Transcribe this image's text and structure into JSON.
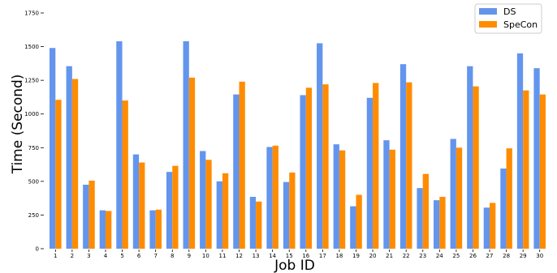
{
  "chart_data": {
    "type": "bar",
    "xlabel": "Job ID",
    "ylabel": "Time (Second)",
    "ylim": [
      0,
      1750
    ],
    "yticks": [
      0,
      250,
      500,
      750,
      1000,
      1250,
      1500,
      1750
    ],
    "ytick_labels": [
      "0",
      "250",
      "500",
      "750",
      "1000",
      "1250",
      "1500",
      "1750"
    ],
    "categories": [
      "1",
      "2",
      "3",
      "4",
      "5",
      "6",
      "7",
      "8",
      "9",
      "10",
      "11",
      "12",
      "13",
      "14",
      "15",
      "16",
      "17",
      "18",
      "19",
      "20",
      "21",
      "22",
      "23",
      "24",
      "25",
      "26",
      "27",
      "28",
      "29",
      "30"
    ],
    "series": [
      {
        "name": "DS",
        "color": "#6495ED",
        "values": [
          1490,
          1355,
          475,
          285,
          1540,
          700,
          285,
          570,
          1540,
          725,
          500,
          1145,
          385,
          755,
          495,
          1140,
          1525,
          775,
          315,
          1120,
          805,
          1370,
          450,
          360,
          815,
          1355,
          305,
          595,
          1450,
          1340
        ]
      },
      {
        "name": "SpeCon",
        "color": "#FF8C00",
        "values": [
          1105,
          1260,
          505,
          280,
          1100,
          640,
          290,
          615,
          1270,
          660,
          560,
          1240,
          350,
          765,
          565,
          1195,
          1220,
          730,
          400,
          1230,
          735,
          1235,
          555,
          385,
          750,
          1205,
          340,
          745,
          1175,
          1145
        ]
      }
    ],
    "legend": {
      "placement": "top-right"
    },
    "grid": false
  }
}
